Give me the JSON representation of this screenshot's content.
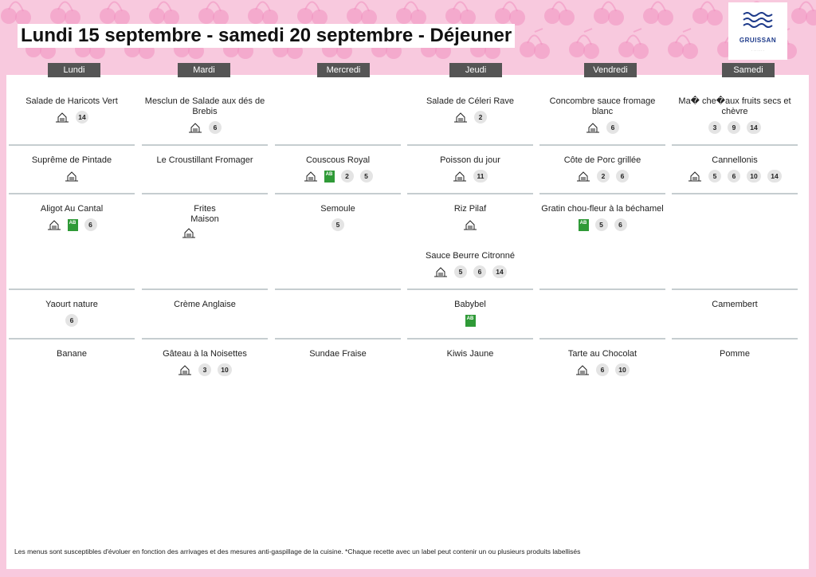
{
  "header": {
    "title": "Lundi 15 septembre - samedi 20 septembre  - Déjeuner",
    "logo_text": "GRUISSAN",
    "logo_sub": "· · · · · · ·"
  },
  "days": [
    "Lundi",
    "Mardi",
    "Mercredi",
    "Jeudi",
    "Vendredi",
    "Samedi"
  ],
  "menu": {
    "lundi": {
      "r1": {
        "dish": "Salade de Haricots Vert",
        "badges": [
          "14"
        ]
      },
      "r2": {
        "dish": "Suprême de Pintade"
      },
      "r3": {
        "dish": "Aligot Au Cantal",
        "badges": [
          "6"
        ]
      },
      "r4": {
        "dish": "Yaourt nature",
        "badges": [
          "6"
        ]
      },
      "r5": {
        "dish": "Banane"
      }
    },
    "mardi": {
      "r1": {
        "dish": "Mesclun de Salade aux dés de Brebis",
        "badges": [
          "6"
        ]
      },
      "r2": {
        "dish": "Le Croustillant Fromager"
      },
      "r3": {
        "dish_l1": "Frites",
        "dish_l2": "Maison"
      },
      "r4": {
        "dish": "Crème Anglaise"
      },
      "r5": {
        "dish": "Gâteau à la Noisettes",
        "badges": [
          "3",
          "10"
        ]
      }
    },
    "mercredi": {
      "r2": {
        "dish": "Couscous Royal",
        "badges": [
          "2",
          "5"
        ]
      },
      "r3": {
        "dish": "Semoule",
        "badges": [
          "5"
        ]
      },
      "r5": {
        "dish": "Sundae Fraise"
      }
    },
    "jeudi": {
      "r1": {
        "dish": "Salade de Céleri Rave",
        "badges": [
          "2"
        ]
      },
      "r2": {
        "dish": "Poisson du jour",
        "badges": [
          "11"
        ]
      },
      "r3": {
        "dish": "Riz Pilaf"
      },
      "r3b": {
        "dish": "Sauce Beurre Citronné",
        "badges": [
          "5",
          "6",
          "14"
        ]
      },
      "r4": {
        "dish": "Babybel"
      },
      "r5": {
        "dish": "Kiwis Jaune"
      }
    },
    "vendredi": {
      "r1": {
        "dish": "Concombre sauce fromage blanc",
        "badges": [
          "6"
        ]
      },
      "r2": {
        "dish": "Côte de Porc grillée",
        "badges": [
          "2",
          "6"
        ]
      },
      "r3": {
        "dish": "Gratin chou-fleur à la béchamel",
        "badges": [
          "5",
          "6"
        ]
      },
      "r5": {
        "dish": "Tarte au Chocolat",
        "badges": [
          "6",
          "10"
        ]
      }
    },
    "samedi": {
      "r1": {
        "dish": "Ma� che�aux fruits secs et chèvre",
        "badges": [
          "3",
          "9",
          "14"
        ]
      },
      "r2": {
        "dish": "Cannellonis",
        "badges": [
          "5",
          "6",
          "10",
          "14"
        ]
      },
      "r4": {
        "dish": "Camembert"
      },
      "r5": {
        "dish": "Pomme"
      }
    }
  },
  "labels": {
    "bio": "AB"
  },
  "footer": "Les menus sont susceptibles d'évoluer en fonction des arrivages et des mesures anti-gaspillage de la cuisine. *Chaque recette avec un label peut contenir un ou plusieurs produits labellisés",
  "colors": {
    "background": "#f8c9de",
    "cherry": "#f08fc0",
    "header_tab": "#555555",
    "bio": "#2f9a37"
  }
}
